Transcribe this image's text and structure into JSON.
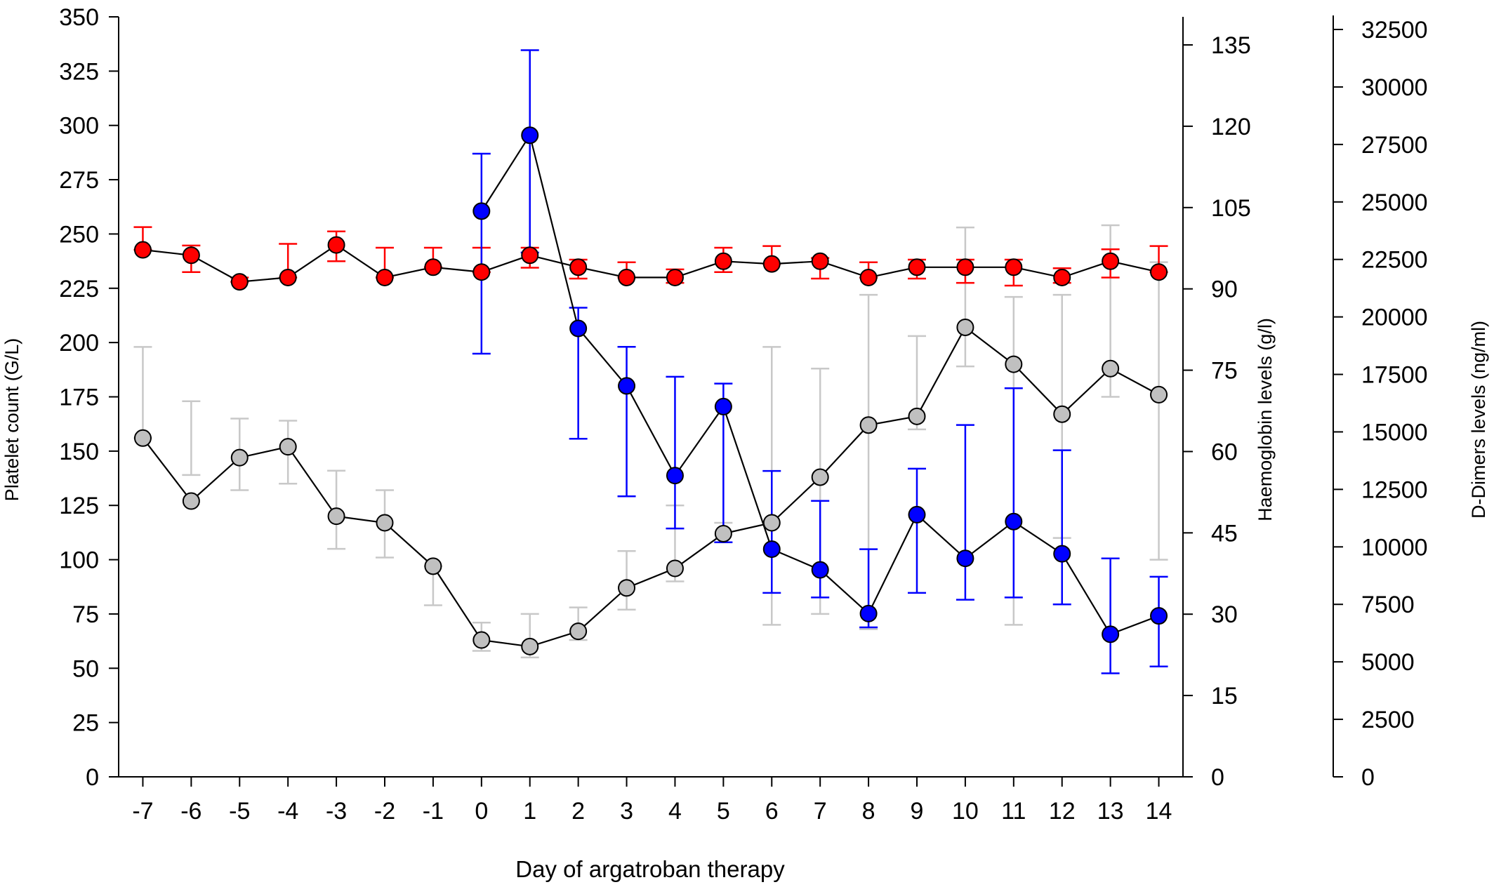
{
  "chart_data": {
    "type": "line",
    "xlabel": "Day of argatroban therapy",
    "x": [
      -7,
      -6,
      -5,
      -4,
      -3,
      -2,
      -1,
      0,
      1,
      2,
      3,
      4,
      5,
      6,
      7,
      8,
      9,
      10,
      11,
      12,
      13,
      14
    ],
    "axes": {
      "platelet": {
        "label": "Platelet count (G/L)",
        "ylim": [
          0,
          350
        ],
        "ticks": [
          0,
          25,
          50,
          75,
          100,
          125,
          150,
          175,
          200,
          225,
          250,
          275,
          300,
          325,
          350
        ]
      },
      "haemoglobin": {
        "label": "Haemoglobin levels (g/l)",
        "ylim": [
          0,
          135
        ],
        "ticks": [
          0,
          15,
          30,
          45,
          60,
          75,
          90,
          105,
          120,
          135
        ]
      },
      "ddimer": {
        "label": "D-Dimers levels (ng/ml)",
        "ylim": [
          0,
          32500
        ],
        "ticks": [
          0,
          2500,
          5000,
          7500,
          10000,
          12500,
          15000,
          17500,
          20000,
          22500,
          25000,
          27500,
          30000,
          32500
        ]
      }
    },
    "series": [
      {
        "axis": "platelet",
        "color": "#c0c0c0",
        "error_color": "#c8c8c8",
        "x": [
          -7,
          -6,
          -5,
          -4,
          -3,
          -2,
          -1,
          0,
          1,
          2,
          3,
          4,
          5,
          6,
          7,
          8,
          9,
          10,
          11,
          12,
          13,
          14
        ],
        "values": [
          156,
          127,
          147,
          152,
          120,
          117,
          97,
          63,
          60,
          67,
          87,
          96,
          112,
          117,
          138,
          162,
          166,
          207,
          190,
          167,
          188,
          176
        ],
        "err_low": [
          156,
          139,
          132,
          135,
          105,
          101,
          79,
          58,
          55,
          63,
          77,
          90,
          108,
          70,
          75,
          68,
          160,
          189,
          70,
          110,
          175,
          100
        ],
        "err_high": [
          198,
          173,
          165,
          164,
          141,
          132,
          97,
          71,
          75,
          78,
          104,
          125,
          117,
          198,
          188,
          222,
          203,
          253,
          221,
          222,
          254,
          237
        ]
      },
      {
        "axis": "haemoglobin",
        "color": "#ff0000",
        "error_color": "#ff0000",
        "x": [
          -7,
          -6,
          -5,
          -4,
          -3,
          -2,
          -1,
          0,
          1,
          2,
          3,
          4,
          5,
          6,
          7,
          8,
          9,
          10,
          11,
          12,
          13,
          14
        ],
        "values": [
          97.2,
          96.2,
          91.3,
          92.1,
          98.1,
          92.1,
          94.0,
          93.1,
          96.2,
          94.0,
          92.1,
          92.1,
          95.1,
          94.6,
          95.1,
          92.1,
          94.0,
          94.0,
          94.0,
          92.1,
          95.1,
          93.1
        ],
        "err_low": [
          97.2,
          93.1,
          91.3,
          92.1,
          95.1,
          92.1,
          94.0,
          93.1,
          93.9,
          91.9,
          92.1,
          91.1,
          93.1,
          94.6,
          91.9,
          92.1,
          91.9,
          91.1,
          90.6,
          91.1,
          92.1,
          93.1
        ],
        "err_high": [
          101.4,
          98.0,
          92.1,
          98.3,
          100.6,
          97.6,
          97.6,
          97.6,
          97.6,
          95.4,
          94.9,
          93.6,
          97.6,
          97.9,
          95.7,
          94.9,
          95.4,
          95.4,
          95.4,
          93.8,
          97.3,
          97.9
        ]
      },
      {
        "axis": "ddimer",
        "color": "#0000ff",
        "error_color": "#0000ff",
        "x": [
          0,
          1,
          2,
          3,
          4,
          5,
          6,
          7,
          8,
          9,
          10,
          11,
          12,
          13,
          14
        ],
        "values": [
          24600,
          27900,
          19500,
          17000,
          13100,
          16100,
          9900,
          9000,
          7100,
          11400,
          9500,
          11100,
          9700,
          6200,
          7000
        ],
        "err_low": [
          18400,
          22800,
          14700,
          12200,
          10800,
          10200,
          8000,
          7800,
          6500,
          8000,
          7700,
          7800,
          7500,
          4500,
          4800
        ],
        "err_high": [
          27100,
          31600,
          20400,
          18700,
          17400,
          17100,
          13300,
          12000,
          9900,
          13400,
          15300,
          16900,
          14200,
          9500,
          8700
        ]
      }
    ],
    "error_bars": true,
    "grid": false,
    "legend": "none"
  }
}
